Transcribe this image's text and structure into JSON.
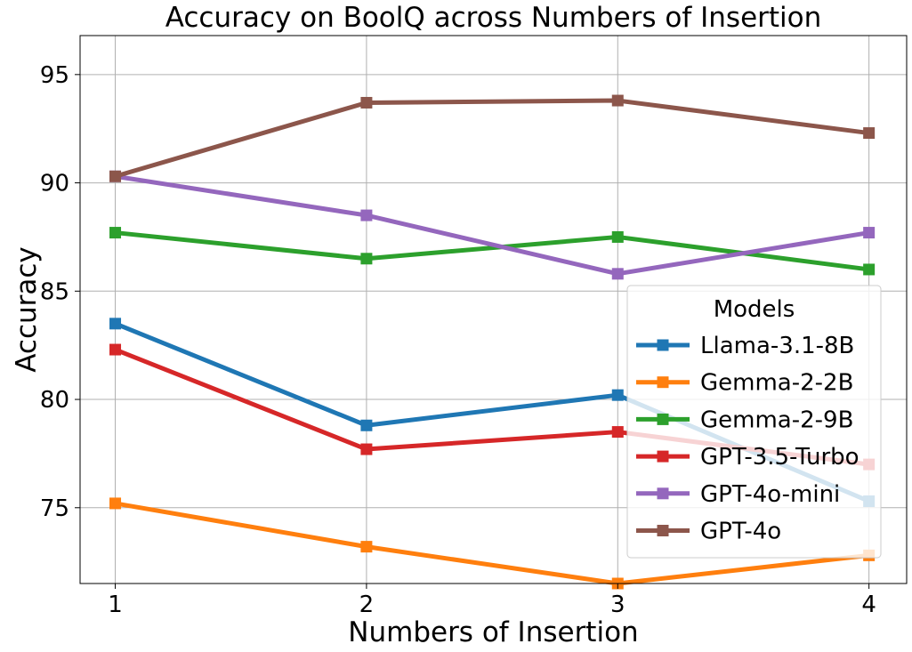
{
  "chart_data": {
    "type": "line",
    "title": "Accuracy on BoolQ across Numbers of Insertion",
    "xlabel": "Numbers of Insertion",
    "ylabel": "Accuracy",
    "x": [
      1,
      2,
      3,
      4
    ],
    "x_tick_labels": [
      "1",
      "2",
      "3",
      "4"
    ],
    "y_ticks": [
      75,
      80,
      85,
      90,
      95
    ],
    "y_tick_labels": [
      "75",
      "80",
      "85",
      "90",
      "95"
    ],
    "xlim": [
      0.86,
      4.15
    ],
    "ylim": [
      71.5,
      96.8
    ],
    "grid": true,
    "legend": {
      "title": "Models",
      "placement": "lower-right"
    },
    "series": [
      {
        "name": "Llama-3.1-8B",
        "color": "#1f77b4",
        "values": [
          83.5,
          78.8,
          80.2,
          75.3
        ]
      },
      {
        "name": "Gemma-2-2B",
        "color": "#ff7f0e",
        "values": [
          75.2,
          73.2,
          71.5,
          72.8
        ]
      },
      {
        "name": "Gemma-2-9B",
        "color": "#2ca02c",
        "values": [
          87.7,
          86.5,
          87.5,
          86.0
        ]
      },
      {
        "name": "GPT-3.5-Turbo",
        "color": "#d62728",
        "values": [
          82.3,
          77.7,
          78.5,
          77.0
        ]
      },
      {
        "name": "GPT-4o-mini",
        "color": "#9467bd",
        "values": [
          90.3,
          88.5,
          85.8,
          87.7
        ]
      },
      {
        "name": "GPT-4o",
        "color": "#8c564b",
        "values": [
          90.3,
          93.7,
          93.8,
          92.3
        ]
      }
    ]
  }
}
